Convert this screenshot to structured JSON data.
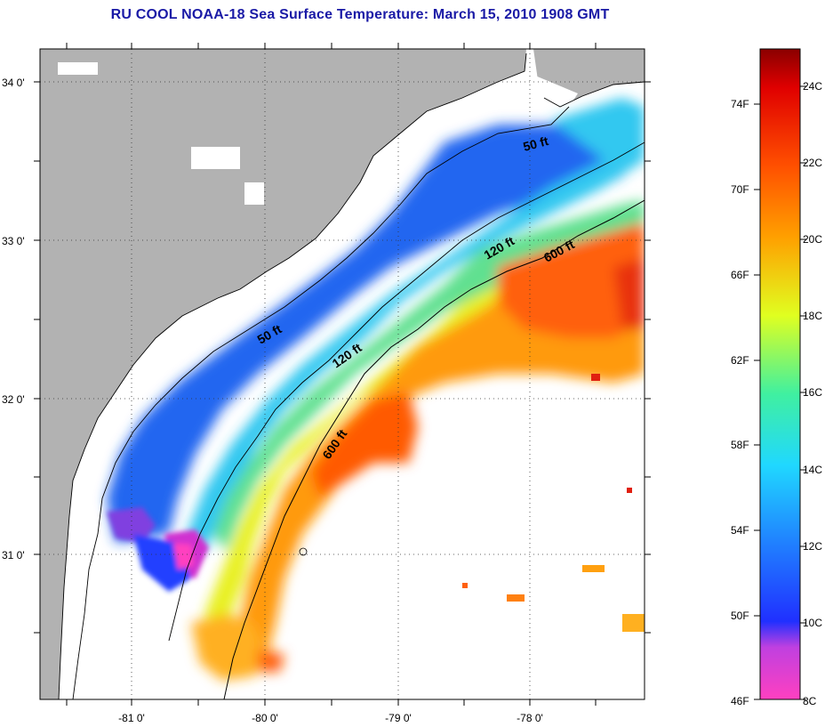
{
  "title": "RU COOL  NOAA-18  Sea Surface Temperature:  March 15, 2010 1908 GMT",
  "map": {
    "lat_labels": [
      "34 0'",
      "33 0'",
      "32 0'",
      "31 0'"
    ],
    "lon_labels": [
      "-81 0'",
      "-80 0'",
      "-79 0'",
      "-78 0'"
    ],
    "contours": [
      {
        "label": "50 ft",
        "depth_ft": 50
      },
      {
        "label": "50 ft",
        "depth_ft": 50
      },
      {
        "label": "120 ft",
        "depth_ft": 120
      },
      {
        "label": "120 ft",
        "depth_ft": 120
      },
      {
        "label": "600 ft",
        "depth_ft": 600
      },
      {
        "label": "600 ft",
        "depth_ft": 600
      }
    ],
    "colors": {
      "land": "#b2b2b2",
      "no_data": "#ffffff",
      "contour": "#000000"
    }
  },
  "colorbar": {
    "f_labels": [
      "74F",
      "70F",
      "66F",
      "62F",
      "58F",
      "54F",
      "50F",
      "46F"
    ],
    "c_labels": [
      "24C",
      "22C",
      "20C",
      "18C",
      "16C",
      "14C",
      "12C",
      "10C",
      "8C"
    ],
    "range_c": [
      8,
      25
    ],
    "stops": [
      {
        "c": 8,
        "color": "#ff40c0"
      },
      {
        "c": 10,
        "color": "#2030ff"
      },
      {
        "c": 12,
        "color": "#2080ff"
      },
      {
        "c": 14,
        "color": "#20d8ff"
      },
      {
        "c": 16,
        "color": "#40f0a0"
      },
      {
        "c": 18,
        "color": "#e0ff20"
      },
      {
        "c": 20,
        "color": "#ffa000"
      },
      {
        "c": 22,
        "color": "#ff5000"
      },
      {
        "c": 24,
        "color": "#e00000"
      },
      {
        "c": 25,
        "color": "#8a0000"
      }
    ]
  }
}
